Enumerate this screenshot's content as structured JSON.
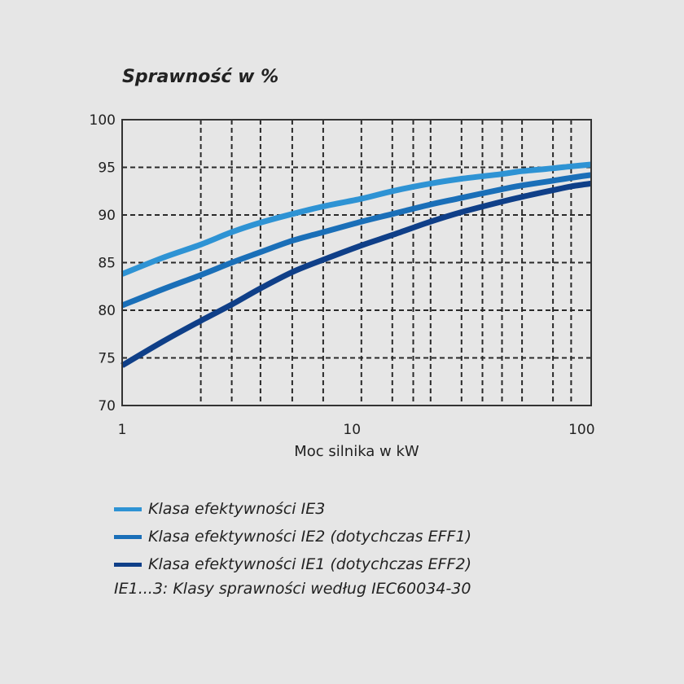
{
  "chart_data": {
    "type": "line",
    "title": "Sprawność w %",
    "xlabel": "Moc silnika w kW",
    "ylabel": "Sprawność w %",
    "x_scale": "log",
    "xlim": [
      1,
      110
    ],
    "ylim": [
      70,
      100
    ],
    "x_tick_labels": [
      "1",
      "10",
      "100"
    ],
    "x_ticks": [
      1,
      10,
      100
    ],
    "y_ticks": [
      100,
      95,
      90,
      85,
      80,
      75,
      70
    ],
    "y_tick_labels": [
      "100",
      "95",
      "90",
      "85",
      "80",
      "75",
      "70"
    ],
    "x_grid": [
      2.2,
      3,
      4,
      5.5,
      7.5,
      11,
      15,
      18.5,
      22,
      30,
      37,
      45,
      55,
      75,
      90,
      110
    ],
    "y_grid": [
      75,
      80,
      85,
      90,
      95
    ],
    "grid": true,
    "grid_style": "dashed",
    "legend_position": "bottom",
    "series": [
      {
        "name": "Klasa efektywności IE3",
        "color": "#2e93d4",
        "x": [
          1,
          1.5,
          2.2,
          3,
          4,
          5.5,
          7.5,
          11,
          15,
          22,
          30,
          45,
          55,
          75,
          90,
          110
        ],
        "y": [
          83.8,
          85.5,
          86.9,
          88.2,
          89.2,
          90.1,
          90.9,
          91.7,
          92.5,
          93.3,
          93.8,
          94.3,
          94.6,
          94.9,
          95.1,
          95.3
        ]
      },
      {
        "name": "Klasa efektywności IE2 (dotychczas EFF1)",
        "color": "#1a6fb8",
        "x": [
          1,
          1.5,
          2.2,
          3,
          4,
          5.5,
          7.5,
          11,
          15,
          22,
          30,
          45,
          55,
          75,
          90,
          110
        ],
        "y": [
          80.5,
          82.2,
          83.7,
          85.0,
          86.1,
          87.3,
          88.2,
          89.3,
          90.1,
          91.1,
          91.8,
          92.7,
          93.1,
          93.6,
          93.9,
          94.2
        ]
      },
      {
        "name": "Klasa efektywności IE1 (dotychczas EFF2)",
        "color": "#0f3f88",
        "x": [
          1,
          1.5,
          2.2,
          3,
          4,
          5.5,
          7.5,
          11,
          15,
          22,
          30,
          45,
          55,
          75,
          90,
          110
        ],
        "y": [
          74.2,
          76.7,
          78.9,
          80.6,
          82.3,
          84.0,
          85.3,
          86.8,
          87.9,
          89.3,
          90.3,
          91.4,
          91.9,
          92.6,
          93.0,
          93.3
        ]
      }
    ],
    "footnote": "IE1...3: Klasy sprawności według IEC60034-30"
  }
}
